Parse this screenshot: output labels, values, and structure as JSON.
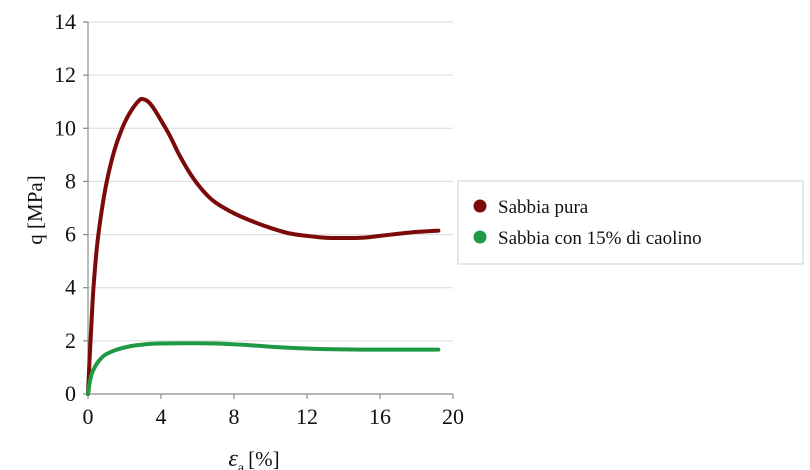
{
  "chart_data": {
    "type": "line",
    "title": "",
    "xlabel": "ε",
    "xlabel_subscript": "a",
    "xlabel_unit": "[%]",
    "ylabel": "q [MPa]",
    "xlim": [
      0,
      20
    ],
    "ylim": [
      0,
      14
    ],
    "x_ticks": [
      "0",
      "4",
      "8",
      "12",
      "16",
      "20"
    ],
    "y_ticks": [
      "0",
      "2",
      "4",
      "6",
      "8",
      "10",
      "12",
      "14"
    ],
    "grid": "horizontal",
    "legend_position": "right",
    "series": [
      {
        "name": "Sabbia pura",
        "color": "#7b0a0a",
        "x": [
          0,
          0.1,
          0.2,
          0.3,
          0.5,
          0.75,
          1.0,
          1.3,
          1.6,
          2.0,
          2.4,
          2.8,
          3.0,
          3.3,
          3.6,
          4.0,
          4.5,
          5.0,
          5.5,
          6.0,
          6.5,
          7.0,
          8.0,
          9.0,
          10.0,
          11.0,
          12.0,
          13.0,
          14.0,
          15.0,
          16.0,
          17.0,
          18.0,
          19.2
        ],
        "y": [
          0,
          1.5,
          2.8,
          4.0,
          5.6,
          6.9,
          7.9,
          8.8,
          9.5,
          10.2,
          10.7,
          11.05,
          11.1,
          11.0,
          10.75,
          10.3,
          9.7,
          9.0,
          8.4,
          7.9,
          7.5,
          7.2,
          6.8,
          6.5,
          6.25,
          6.05,
          5.95,
          5.88,
          5.87,
          5.88,
          5.95,
          6.03,
          6.1,
          6.15
        ]
      },
      {
        "name": "Sabbia con 15% di caolino",
        "color": "#1f9a44",
        "x": [
          0,
          0.1,
          0.2,
          0.4,
          0.6,
          0.8,
          1.0,
          1.5,
          2.0,
          2.5,
          3.0,
          3.5,
          4.0,
          5.0,
          6.0,
          7.0,
          8.0,
          9.0,
          10.0,
          11.0,
          12.0,
          13.0,
          14.0,
          15.0,
          16.0,
          17.0,
          18.0,
          19.2
        ],
        "y": [
          0,
          0.45,
          0.75,
          1.05,
          1.25,
          1.4,
          1.5,
          1.65,
          1.75,
          1.82,
          1.86,
          1.89,
          1.9,
          1.91,
          1.91,
          1.9,
          1.87,
          1.83,
          1.78,
          1.74,
          1.71,
          1.69,
          1.68,
          1.67,
          1.67,
          1.67,
          1.67,
          1.67
        ]
      }
    ]
  }
}
